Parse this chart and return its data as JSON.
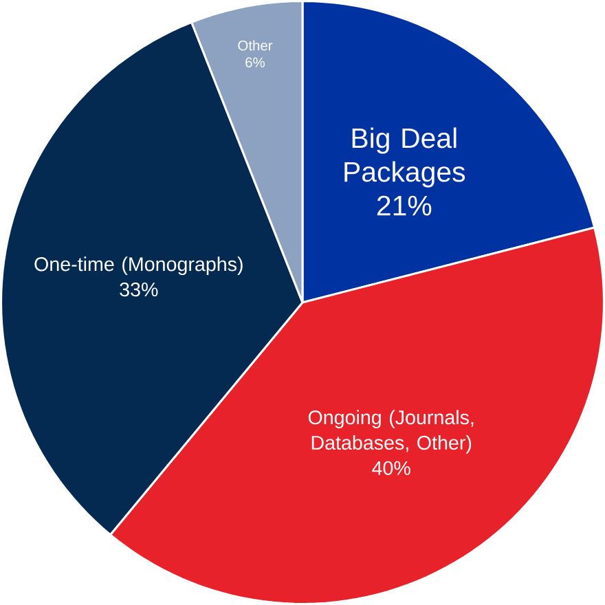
{
  "chart_data": {
    "type": "pie",
    "categories": [
      "Big Deal Packages",
      "Ongoing (Journals, Databases, Other)",
      "One-time (Monographs)",
      "Other"
    ],
    "values": [
      21,
      40,
      33,
      6
    ],
    "value_labels": [
      "21%",
      "40%",
      "33%",
      "6%"
    ],
    "colors": [
      "#0033a1",
      "#e8222b",
      "#052a52",
      "#8da2c0"
    ]
  }
}
